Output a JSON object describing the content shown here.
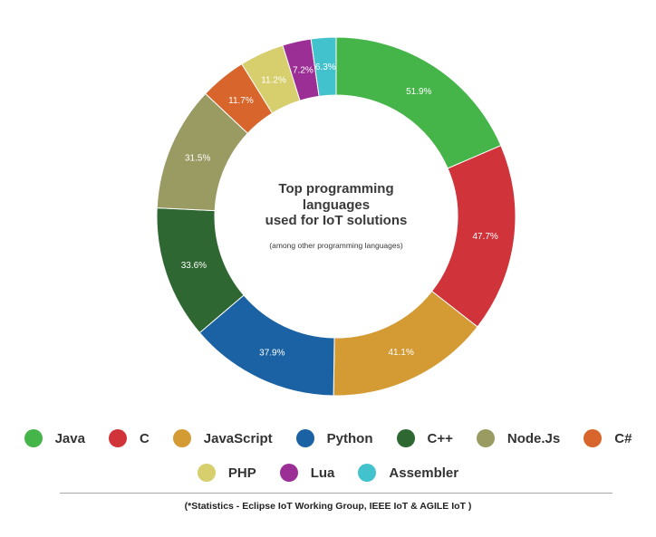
{
  "chart_data": {
    "type": "donut",
    "title_lines": [
      "Top programming",
      "languages",
      "used for IoT solutions"
    ],
    "subtitle": "(among other programming languages)",
    "series": [
      {
        "name": "Java",
        "value": 51.9,
        "label": "51.9%",
        "color": "#45b549"
      },
      {
        "name": "C",
        "value": 47.7,
        "label": "47.7%",
        "color": "#d1333a"
      },
      {
        "name": "JavaScript",
        "value": 41.1,
        "label": "41.1%",
        "color": "#d49b34"
      },
      {
        "name": "Python",
        "value": 37.9,
        "label": "37.9%",
        "color": "#1a62a3"
      },
      {
        "name": "C++",
        "value": 33.6,
        "label": "33.6%",
        "color": "#2f6733"
      },
      {
        "name": "Node.Js",
        "value": 31.5,
        "label": "31.5%",
        "color": "#9a9a63"
      },
      {
        "name": "C#",
        "value": 11.7,
        "label": "11.7%",
        "color": "#d7652c"
      },
      {
        "name": "PHP",
        "value": 11.2,
        "label": "11.2%",
        "color": "#d7cf6d"
      },
      {
        "name": "Lua",
        "value": 7.2,
        "label": "7.2%",
        "color": "#9c2f95"
      },
      {
        "name": "Assembler",
        "value": 6.3,
        "label": "6.3%",
        "color": "#42c2cc"
      }
    ],
    "legend_placement": "bottom"
  },
  "legend": {
    "row1": [
      {
        "label": "Java",
        "color": "#45b549"
      },
      {
        "label": "C",
        "color": "#d1333a"
      },
      {
        "label": "JavaScript",
        "color": "#d49b34"
      },
      {
        "label": "Python",
        "color": "#1a62a3"
      },
      {
        "label": "C++",
        "color": "#2f6733"
      },
      {
        "label": "Node.Js",
        "color": "#9a9a63"
      },
      {
        "label": "C#",
        "color": "#d7652c"
      }
    ],
    "row2": [
      {
        "label": "PHP",
        "color": "#d7cf6d"
      },
      {
        "label": "Lua",
        "color": "#9c2f95"
      },
      {
        "label": "Assembler",
        "color": "#42c2cc"
      }
    ]
  },
  "footnote": "(*Statistics - Eclipse IoT Working Group, IEEE IoT & AGILE IoT )"
}
